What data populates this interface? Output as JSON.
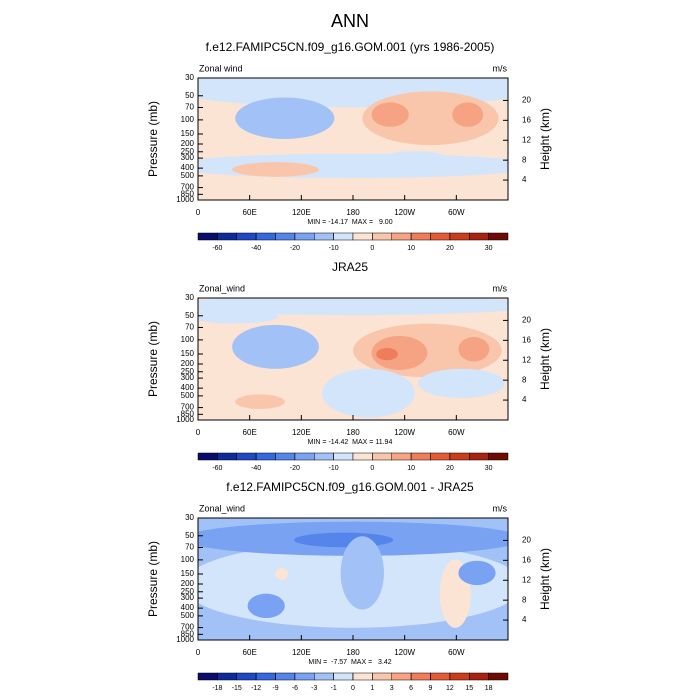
{
  "title": "ANN",
  "colormap": [
    "#0b0b6b",
    "#0d2a9a",
    "#1f48c4",
    "#3567de",
    "#5585ea",
    "#79a3f2",
    "#a2c2f7",
    "#d3e5fa",
    "#fce4d4",
    "#f9c6ab",
    "#f5a382",
    "#ef7d5a",
    "#e35a35",
    "#cb3c1c",
    "#a8230e",
    "#6e0a03"
  ],
  "chart_data": [
    {
      "type": "contour",
      "title": "f.e12.FAMIPC5CN.f09_g16.GOM.001 (yrs 1986-2005)",
      "left_label": "Zonal wind",
      "right_label": "m/s",
      "ylabel": "Pressure (mb)",
      "y2label": "Height (km)",
      "log_y": true,
      "ylim": [
        1000,
        30
      ],
      "yticks": [
        30,
        50,
        70,
        100,
        150,
        200,
        250,
        300,
        400,
        500,
        700,
        850,
        1000
      ],
      "y2lim": [
        0,
        24.5
      ],
      "y2ticks": [
        4,
        8,
        12,
        16,
        20
      ],
      "xlim": [
        0,
        360
      ],
      "xticks": [
        0,
        {
          "value": 60,
          "label": "60E"
        },
        {
          "value": 120,
          "label": "120E"
        },
        180,
        {
          "value": 240,
          "label": "120W"
        },
        {
          "value": 300,
          "label": "60W"
        }
      ],
      "stats": "MIN = -14.17  MAX =   9.00",
      "colorbar_labels": [
        -60,
        -40,
        -20,
        -10,
        0,
        10,
        20,
        30
      ]
    },
    {
      "type": "contour",
      "title": "JRA25",
      "left_label": "Zonal_wind",
      "right_label": "m/s",
      "ylabel": "Pressure (mb)",
      "y2label": "Height (km)",
      "log_y": true,
      "ylim": [
        1000,
        30
      ],
      "yticks": [
        30,
        50,
        70,
        100,
        150,
        200,
        250,
        300,
        400,
        500,
        700,
        850,
        1000
      ],
      "y2lim": [
        0,
        24.5
      ],
      "y2ticks": [
        4,
        8,
        12,
        16,
        20
      ],
      "xlim": [
        0,
        360
      ],
      "xticks": [
        0,
        {
          "value": 60,
          "label": "60E"
        },
        {
          "value": 120,
          "label": "120E"
        },
        180,
        {
          "value": 240,
          "label": "120W"
        },
        {
          "value": 300,
          "label": "60W"
        }
      ],
      "stats": "MIN = -14.42  MAX = 11.94",
      "colorbar_labels": [
        -60,
        -40,
        -20,
        -10,
        0,
        10,
        20,
        30
      ]
    },
    {
      "type": "contour",
      "title": "f.e12.FAMIPC5CN.f09_g16.GOM.001 - JRA25",
      "left_label": "Zonal_wind",
      "right_label": "m/s",
      "ylabel": "Pressure (mb)",
      "y2label": "Height (km)",
      "log_y": true,
      "ylim": [
        1000,
        30
      ],
      "yticks": [
        30,
        50,
        70,
        100,
        150,
        200,
        250,
        300,
        400,
        500,
        700,
        850,
        1000
      ],
      "y2lim": [
        0,
        24.5
      ],
      "y2ticks": [
        4,
        8,
        12,
        16,
        20
      ],
      "xlim": [
        0,
        360
      ],
      "xticks": [
        0,
        {
          "value": 60,
          "label": "60E"
        },
        {
          "value": 120,
          "label": "120E"
        },
        180,
        {
          "value": 240,
          "label": "120W"
        },
        {
          "value": 300,
          "label": "60W"
        }
      ],
      "stats": "MIN =  -7.57  MAX =   3.42",
      "colorbar_labels": [
        -18,
        -15,
        -12,
        -9,
        -6,
        -3,
        -1,
        0,
        1,
        3,
        6,
        9,
        12,
        15,
        18
      ]
    }
  ]
}
